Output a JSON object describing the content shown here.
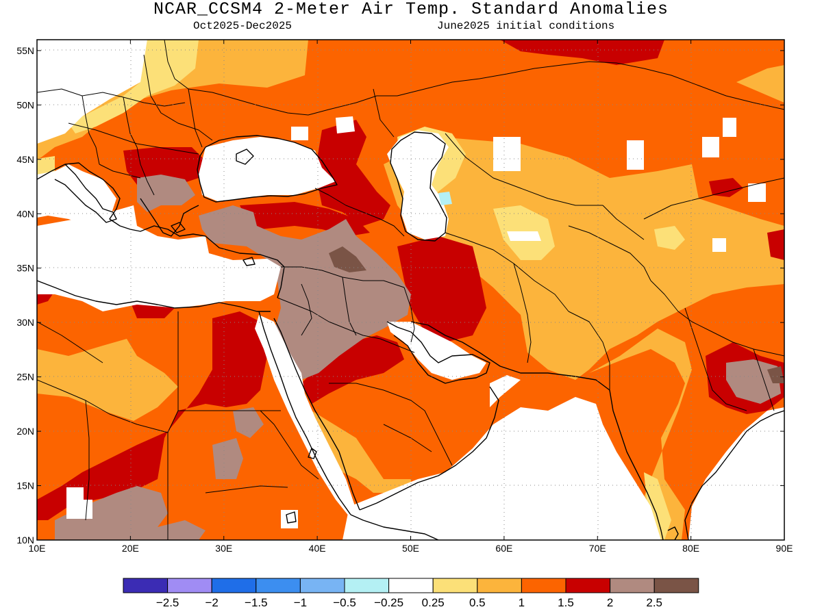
{
  "title": "NCAR_CCSM4 2-Meter Air Temp. Standard Anomalies",
  "subtitle_left": "Oct2025-Dec2025",
  "subtitle_right": "June2025 initial conditions",
  "map": {
    "lon_range": [
      10,
      90
    ],
    "lat_range": [
      10,
      56
    ],
    "lon_ticks": [
      "10E",
      "20E",
      "30E",
      "40E",
      "50E",
      "60E",
      "70E",
      "80E",
      "90E"
    ],
    "lat_ticks": [
      "10N",
      "15N",
      "20N",
      "25N",
      "30N",
      "35N",
      "40N",
      "45N",
      "50N",
      "55N"
    ],
    "grid": "dotted",
    "features": [
      "water-bodies",
      "coastlines",
      "country-borders"
    ]
  },
  "colorbar": {
    "colors": [
      "#3b2cb4",
      "#a08cf4",
      "#1f6ee8",
      "#3c8ef0",
      "#78b4f4",
      "#b4f0f4",
      "#ffffff",
      "#fce078",
      "#fcb43c",
      "#fc6400",
      "#c80000",
      "#b08a80",
      "#7a5446"
    ],
    "labels": [
      "−2.5",
      "−2",
      "−1.5",
      "−1",
      "−0.5",
      "−0.25",
      "0.25",
      "0.5",
      "1",
      "1.5",
      "2",
      "2.5"
    ]
  }
}
